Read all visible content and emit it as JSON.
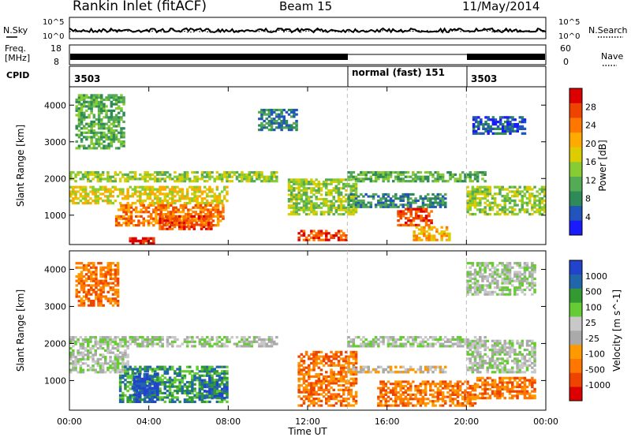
{
  "header": {
    "station": "Rankin Inlet (fitACF)",
    "beam": "Beam 15",
    "date": "11/May/2014"
  },
  "panels": {
    "nsky": {
      "label": "N.Sky",
      "left_ticks": [
        "10^5",
        "10^0"
      ],
      "right_ticks": [
        "10^5",
        "10^0"
      ],
      "right_label": "N.Search"
    },
    "freq": {
      "label_line1": "Freq.",
      "label_line2": "[MHz]",
      "left_ticks": [
        "18",
        "8"
      ],
      "right_ticks": [
        "60",
        "0"
      ],
      "right_label": "Nave"
    },
    "cpid": {
      "label": "CPID",
      "segments": [
        "3503",
        "normal (fast) 151",
        "3503"
      ]
    }
  },
  "power_scale": {
    "title": "Power [dB]",
    "colors": [
      "#1a1aff",
      "#2255bb",
      "#2e8b57",
      "#55aa55",
      "#88cc33",
      "#ddcc00",
      "#ffaa00",
      "#ff7700",
      "#ee4400",
      "#dd0000"
    ],
    "labels": [
      "4",
      "8",
      "12",
      "16",
      "20",
      "24",
      "28"
    ]
  },
  "velocity_scale": {
    "title": "Velocity [m s^-1]",
    "colors": [
      "#dd0000",
      "#ee4400",
      "#ff7700",
      "#ff9900",
      "#aaaaaa",
      "#c8c8c8",
      "#66cc33",
      "#339933",
      "#2266aa",
      "#2244cc"
    ],
    "labels": [
      "-1000",
      "-500",
      "-100",
      "-25",
      "25",
      "100",
      "500",
      "1000"
    ]
  },
  "chart_data": [
    {
      "type": "heatmap",
      "name": "power",
      "ylabel": "Slant Range [km]",
      "xlabel": "",
      "x_ticks": [
        "00:00",
        "04:00",
        "08:00",
        "12:00",
        "16:00",
        "20:00",
        "00:00"
      ],
      "y_ticks": [
        1000,
        2000,
        3000,
        4000
      ],
      "ylim": [
        200,
        4500
      ],
      "xlim_hours": [
        0,
        24
      ],
      "mode_change_hours": [
        14,
        20
      ],
      "regions": [
        {
          "t0": 0.0,
          "t1": 10.5,
          "r0": 1900,
          "r1": 2200,
          "level": 4
        },
        {
          "t0": 0.0,
          "t1": 8.0,
          "r0": 1300,
          "r1": 1800,
          "level": 5
        },
        {
          "t0": 2.3,
          "t1": 7.8,
          "r0": 700,
          "r1": 1300,
          "level": 7
        },
        {
          "t0": 4.5,
          "t1": 7.2,
          "r0": 600,
          "r1": 1000,
          "level": 8
        },
        {
          "t0": 3.0,
          "t1": 4.3,
          "r0": 200,
          "r1": 400,
          "level": 9
        },
        {
          "t0": 0.3,
          "t1": 2.8,
          "r0": 2800,
          "r1": 4300,
          "level": 3
        },
        {
          "t0": 9.5,
          "t1": 11.5,
          "r0": 3300,
          "r1": 3900,
          "level": 2
        },
        {
          "t0": 11.0,
          "t1": 14.5,
          "r0": 1000,
          "r1": 2000,
          "level": 4
        },
        {
          "t0": 11.5,
          "t1": 14.0,
          "r0": 300,
          "r1": 600,
          "level": 8
        },
        {
          "t0": 14.0,
          "t1": 21.0,
          "r0": 1900,
          "r1": 2200,
          "level": 3
        },
        {
          "t0": 14.0,
          "t1": 19.0,
          "r0": 1200,
          "r1": 1600,
          "level": 2
        },
        {
          "t0": 16.5,
          "t1": 18.3,
          "r0": 700,
          "r1": 1200,
          "level": 8
        },
        {
          "t0": 17.3,
          "t1": 19.2,
          "r0": 300,
          "r1": 700,
          "level": 6
        },
        {
          "t0": 20.0,
          "t1": 24.0,
          "r0": 1000,
          "r1": 1800,
          "level": 4
        },
        {
          "t0": 20.3,
          "t1": 23.0,
          "r0": 3200,
          "r1": 3700,
          "level": 1
        }
      ]
    },
    {
      "type": "heatmap",
      "name": "velocity",
      "ylabel": "Slant Range [km]",
      "xlabel": "Time UT",
      "x_ticks": [
        "00:00",
        "04:00",
        "08:00",
        "12:00",
        "16:00",
        "20:00",
        "00:00"
      ],
      "y_ticks": [
        1000,
        2000,
        3000,
        4000
      ],
      "ylim": [
        200,
        4500
      ],
      "xlim_hours": [
        0,
        24
      ],
      "mode_change_hours": [
        14,
        20
      ],
      "regions": [
        {
          "t0": 0.0,
          "t1": 10.5,
          "r0": 1900,
          "r1": 2200,
          "level": 5
        },
        {
          "t0": 0.0,
          "t1": 3.0,
          "r0": 1200,
          "r1": 1900,
          "level": 5
        },
        {
          "t0": 2.5,
          "t1": 8.0,
          "r0": 400,
          "r1": 1400,
          "level": 7
        },
        {
          "t0": 3.2,
          "t1": 4.5,
          "r0": 400,
          "r1": 1200,
          "level": 9
        },
        {
          "t0": 6.5,
          "t1": 8.0,
          "r0": 500,
          "r1": 1100,
          "level": 8
        },
        {
          "t0": 0.3,
          "t1": 2.5,
          "r0": 3000,
          "r1": 4200,
          "level": 2
        },
        {
          "t0": 11.5,
          "t1": 14.5,
          "r0": 300,
          "r1": 1800,
          "level": 2
        },
        {
          "t0": 14.0,
          "t1": 21.0,
          "r0": 1900,
          "r1": 2200,
          "level": 5
        },
        {
          "t0": 14.0,
          "t1": 19.0,
          "r0": 1200,
          "r1": 1400,
          "level": 4
        },
        {
          "t0": 15.5,
          "t1": 20.5,
          "r0": 300,
          "r1": 1000,
          "level": 2
        },
        {
          "t0": 20.0,
          "t1": 23.5,
          "r0": 1200,
          "r1": 2100,
          "level": 5
        },
        {
          "t0": 20.5,
          "t1": 23.5,
          "r0": 500,
          "r1": 1100,
          "level": 2
        },
        {
          "t0": 20.0,
          "t1": 23.5,
          "r0": 3300,
          "r1": 4200,
          "level": 5
        }
      ]
    }
  ]
}
